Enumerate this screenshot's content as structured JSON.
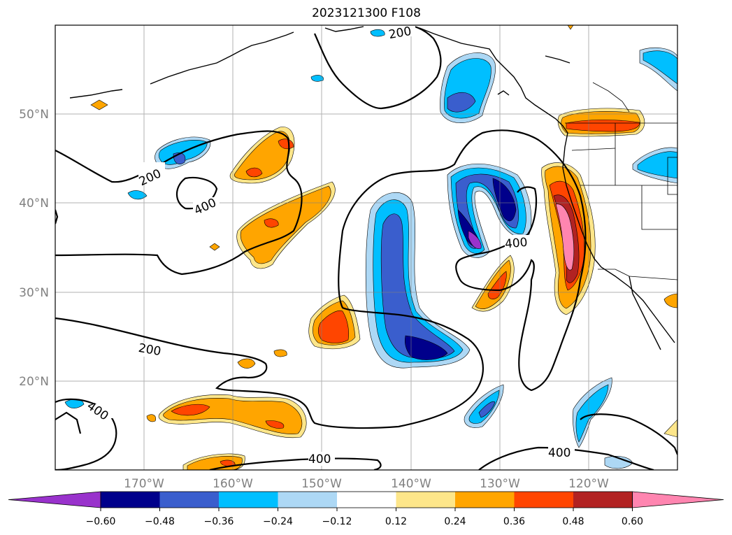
{
  "title": "2023121300 F108",
  "map": {
    "lon_labels": [
      "170°W",
      "160°W",
      "150°W",
      "140°W",
      "130°W",
      "120°W"
    ],
    "lat_labels": [
      "50°N",
      "40°N",
      "30°N",
      "20°N"
    ],
    "contour_labels": [
      "200",
      "200",
      "200",
      "400",
      "400",
      "400",
      "400",
      "400"
    ],
    "grid": true,
    "coastlines": true
  },
  "colorbar": {
    "colors": [
      "#9932cc",
      "#00008b",
      "#3a5ecd",
      "#00bfff",
      "#add8f5",
      "#ffffff",
      "#fde68a",
      "#ffa500",
      "#ff4500",
      "#b22222",
      "#ff85b0"
    ],
    "ticks": [
      "−0.60",
      "−0.48",
      "−0.36",
      "−0.24",
      "−0.12",
      "0.12",
      "0.24",
      "0.36",
      "0.48",
      "0.60"
    ]
  }
}
